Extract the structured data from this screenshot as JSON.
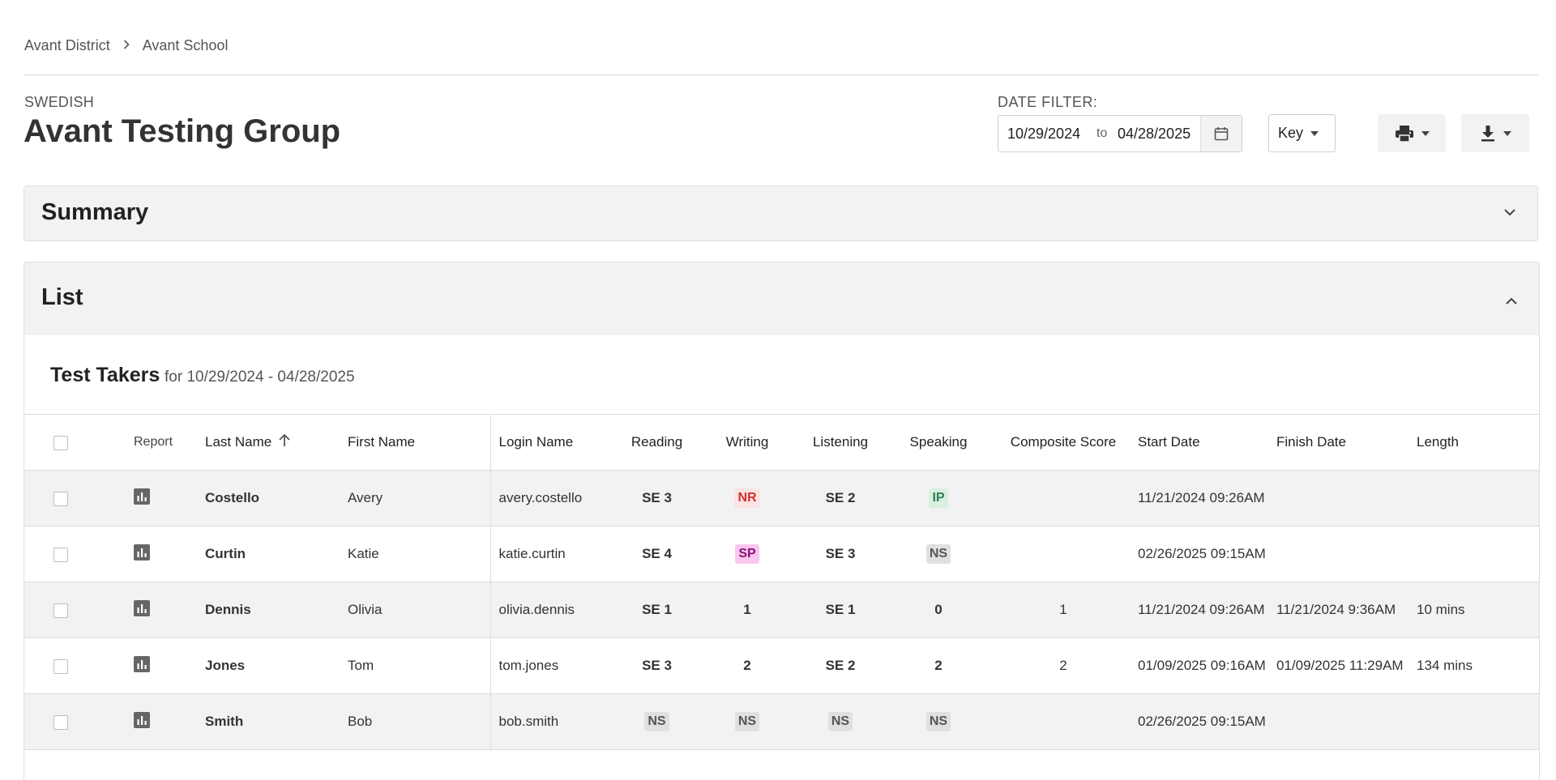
{
  "breadcrumb": {
    "district": "Avant District",
    "school": "Avant School"
  },
  "header": {
    "language": "SWEDISH",
    "title": "Avant Testing Group"
  },
  "date_filter": {
    "label": "DATE FILTER:",
    "from": "10/29/2024",
    "to_word": "to",
    "to": "04/28/2025"
  },
  "key_button": {
    "label": "Key"
  },
  "summary_panel": {
    "title": "Summary"
  },
  "list_panel": {
    "title": "List"
  },
  "test_takers": {
    "title": "Test Takers",
    "range": "for 10/29/2024 - 04/28/2025"
  },
  "columns": {
    "report": "Report",
    "last_name": "Last Name",
    "first_name": "First Name",
    "login_name": "Login Name",
    "reading": "Reading",
    "writing": "Writing",
    "listening": "Listening",
    "speaking": "Speaking",
    "composite": "Composite Score",
    "start": "Start Date",
    "finish": "Finish Date",
    "length": "Length"
  },
  "rows": [
    {
      "last": "Costello",
      "first": "Avery",
      "login": "avery.costello",
      "reading": {
        "v": "SE 3",
        "s": "plain"
      },
      "writing": {
        "v": "NR",
        "s": "nr"
      },
      "listening": {
        "v": "SE 2",
        "s": "plain"
      },
      "speaking": {
        "v": "IP",
        "s": "ip"
      },
      "composite": "",
      "start": "11/21/2024 09:26AM",
      "finish": "",
      "length": ""
    },
    {
      "last": "Curtin",
      "first": "Katie",
      "login": "katie.curtin",
      "reading": {
        "v": "SE 4",
        "s": "plain"
      },
      "writing": {
        "v": "SP",
        "s": "sp"
      },
      "listening": {
        "v": "SE 3",
        "s": "plain"
      },
      "speaking": {
        "v": "NS",
        "s": "ns"
      },
      "composite": "",
      "start": "02/26/2025 09:15AM",
      "finish": "",
      "length": ""
    },
    {
      "last": "Dennis",
      "first": "Olivia",
      "login": "olivia.dennis",
      "reading": {
        "v": "SE 1",
        "s": "plain"
      },
      "writing": {
        "v": "1",
        "s": "plain"
      },
      "listening": {
        "v": "SE 1",
        "s": "plain"
      },
      "speaking": {
        "v": "0",
        "s": "plain"
      },
      "composite": "1",
      "start": "11/21/2024 09:26AM",
      "finish": "11/21/2024 9:36AM",
      "length": "10 mins"
    },
    {
      "last": "Jones",
      "first": "Tom",
      "login": "tom.jones",
      "reading": {
        "v": "SE 3",
        "s": "plain"
      },
      "writing": {
        "v": "2",
        "s": "plain"
      },
      "listening": {
        "v": "SE 2",
        "s": "plain"
      },
      "speaking": {
        "v": "2",
        "s": "plain"
      },
      "composite": "2",
      "start": "01/09/2025 09:16AM",
      "finish": "01/09/2025 11:29AM",
      "length": "134 mins"
    },
    {
      "last": "Smith",
      "first": "Bob",
      "login": "bob.smith",
      "reading": {
        "v": "NS",
        "s": "ns"
      },
      "writing": {
        "v": "NS",
        "s": "ns"
      },
      "listening": {
        "v": "NS",
        "s": "ns"
      },
      "speaking": {
        "v": "NS",
        "s": "ns"
      },
      "composite": "",
      "start": "02/26/2025 09:15AM",
      "finish": "",
      "length": ""
    }
  ],
  "colors": {
    "panel_bg": "#f2f2f2",
    "nr": "#d32f2f",
    "sp": "#8a1277",
    "ip": "#2e7d4f",
    "ns": "#555555"
  }
}
